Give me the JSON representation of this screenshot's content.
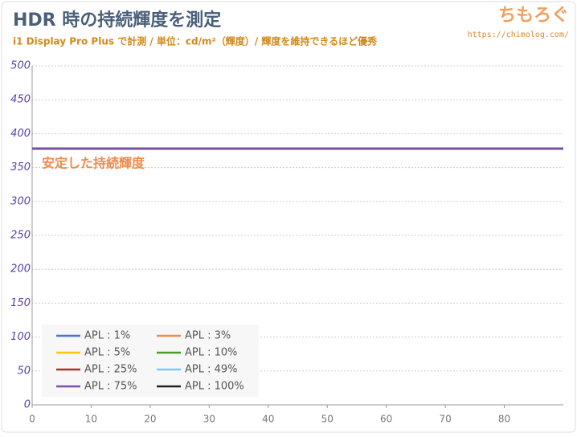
{
  "chart_data": {
    "type": "line",
    "title": "HDR 時の持続輝度を測定",
    "subtitle": "i1 Display Pro Plus で計測 / 単位：cd/m²（輝度）/ 輝度を維持できるほど優秀",
    "watermark": "ちもろぐ",
    "url": "https://chimolog.com/",
    "annotation": "安定した持続輝度",
    "x": [
      0,
      90
    ],
    "series": [
      {
        "name": "APL : 1%",
        "color": "#4e6fd8",
        "values": [
          378,
          378
        ]
      },
      {
        "name": "APL : 3%",
        "color": "#f08a4b",
        "values": [
          378,
          378
        ]
      },
      {
        "name": "APL : 5%",
        "color": "#f5c518",
        "values": [
          378,
          378
        ]
      },
      {
        "name": "APL : 10%",
        "color": "#4d9a2a",
        "values": [
          378,
          378
        ]
      },
      {
        "name": "APL : 25%",
        "color": "#b0302a",
        "values": [
          378,
          378
        ]
      },
      {
        "name": "APL : 49%",
        "color": "#7ec8f0",
        "values": [
          378,
          378
        ]
      },
      {
        "name": "APL : 75%",
        "color": "#7b4fa8",
        "values": [
          378,
          378
        ]
      },
      {
        "name": "APL : 100%",
        "color": "#222222",
        "values": [
          378,
          378
        ]
      }
    ],
    "xlim": [
      0,
      90
    ],
    "xticks": [
      0,
      10,
      20,
      30,
      40,
      50,
      60,
      70,
      80
    ],
    "ylim": [
      0,
      500
    ],
    "yticks": [
      0,
      50,
      100,
      150,
      200,
      250,
      300,
      350,
      400,
      450,
      500
    ],
    "grid": true,
    "legend": "lower left"
  }
}
